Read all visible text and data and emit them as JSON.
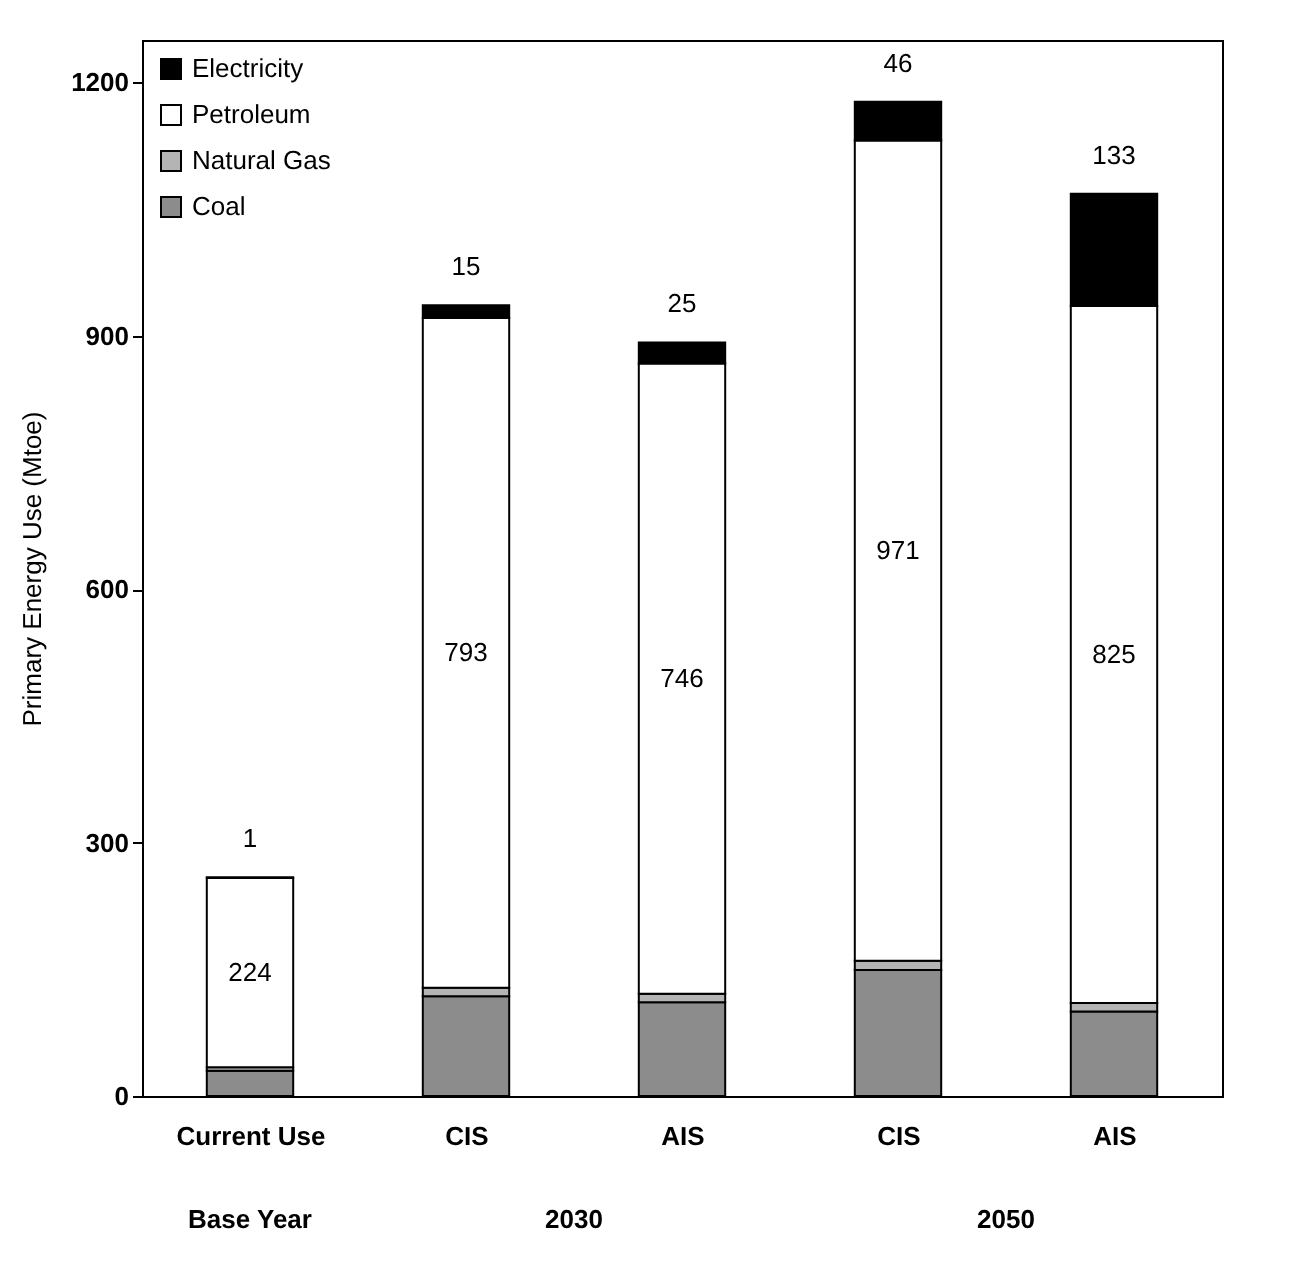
{
  "chart_data": {
    "type": "bar",
    "stacked": true,
    "ylabel": "Primary Energy Use (Mtoe)",
    "categories": [
      "Current Use",
      "CIS",
      "AIS",
      "CIS",
      "AIS"
    ],
    "annotations": [
      "Base Year",
      "2030",
      "2050"
    ],
    "series": [
      {
        "name": "Coal",
        "color": "#8c8c8c",
        "values": [
          30,
          118,
          111,
          149,
          100
        ]
      },
      {
        "name": "Natural Gas",
        "color": "#b4b4b4",
        "values": [
          4,
          10,
          10,
          11,
          10
        ]
      },
      {
        "name": "Petroleum",
        "color": "#ffffff",
        "values": [
          224,
          793,
          746,
          971,
          825
        ],
        "value_labels": [
          "224",
          "793",
          "746",
          "971",
          "825"
        ]
      },
      {
        "name": "Electricity",
        "color": "#000000",
        "values": [
          1,
          15,
          25,
          46,
          133
        ],
        "value_labels": [
          "1",
          "15",
          "25",
          "46",
          "133"
        ]
      }
    ],
    "ylim": [
      0,
      1250
    ],
    "yticks": [
      0,
      300,
      600,
      900,
      1200
    ],
    "legend": "top left"
  }
}
